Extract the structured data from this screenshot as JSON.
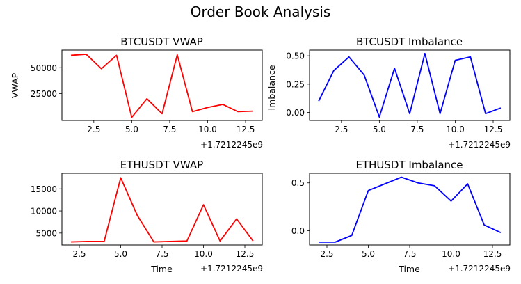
{
  "figure": {
    "suptitle": "Order Book Analysis"
  },
  "chart_data": [
    {
      "type": "line",
      "title": "BTCUSDT VWAP",
      "xlabel": "",
      "ylabel": "VWAP",
      "x_offset_label": "+1.7212245e9",
      "color": "#ff0000",
      "xlim": [
        0.4,
        13.6
      ],
      "ylim": [
        -1000,
        67000
      ],
      "xticks": [
        2.5,
        5.0,
        7.5,
        10.0,
        12.5
      ],
      "xtick_labels": [
        "2.5",
        "5.0",
        "7.5",
        "10.0",
        "12.5"
      ],
      "yticks": [
        25000,
        50000
      ],
      "ytick_labels": [
        "25000",
        "50000"
      ],
      "x": [
        1,
        2,
        3,
        4,
        5,
        6,
        7,
        8,
        9,
        10,
        11,
        12,
        13
      ],
      "y": [
        62000,
        63000,
        49000,
        62000,
        2000,
        20000,
        5500,
        62500,
        7500,
        11500,
        14500,
        7500,
        8000
      ]
    },
    {
      "type": "line",
      "title": "BTCUSDT Imbalance",
      "xlabel": "",
      "ylabel": "Imbalance",
      "x_offset_label": "+1.7212245e9",
      "color": "#0000ff",
      "xlim": [
        0.4,
        13.6
      ],
      "ylim": [
        -0.07,
        0.55
      ],
      "xticks": [
        2.5,
        5.0,
        7.5,
        10.0,
        12.5
      ],
      "xtick_labels": [
        "2.5",
        "5.0",
        "7.5",
        "10.0",
        "12.5"
      ],
      "yticks": [
        0.0,
        0.25,
        0.5
      ],
      "ytick_labels": [
        "0.00",
        "0.25",
        "0.50"
      ],
      "x": [
        1,
        2,
        3,
        4,
        5,
        6,
        7,
        8,
        9,
        10,
        11,
        12,
        13
      ],
      "y": [
        0.1,
        0.37,
        0.49,
        0.33,
        -0.04,
        0.39,
        -0.01,
        0.52,
        -0.01,
        0.46,
        0.49,
        -0.01,
        0.04
      ]
    },
    {
      "type": "line",
      "title": "ETHUSDT VWAP",
      "xlabel": "Time",
      "ylabel": "",
      "x_offset_label": "+1.7212245e9",
      "color": "#ff0000",
      "xlim": [
        1.45,
        13.55
      ],
      "ylim": [
        2300,
        18500
      ],
      "xticks": [
        2.5,
        5.0,
        7.5,
        10.0,
        12.5
      ],
      "xtick_labels": [
        "2.5",
        "5.0",
        "7.5",
        "10.0",
        "12.5"
      ],
      "yticks": [
        5000,
        10000,
        15000
      ],
      "ytick_labels": [
        "5000",
        "10000",
        "15000"
      ],
      "x": [
        2,
        3,
        4,
        5,
        6,
        7,
        8,
        9,
        10,
        11,
        12,
        13
      ],
      "y": [
        3000,
        3100,
        3100,
        17500,
        9000,
        3000,
        3100,
        3200,
        11400,
        3200,
        8200,
        3200
      ]
    },
    {
      "type": "line",
      "title": "ETHUSDT Imbalance",
      "xlabel": "Time",
      "ylabel": "",
      "x_offset_label": "+1.7212245e9",
      "color": "#0000ff",
      "xlim": [
        1.45,
        13.55
      ],
      "ylim": [
        -0.15,
        0.6
      ],
      "xticks": [
        2.5,
        5.0,
        7.5,
        10.0,
        12.5
      ],
      "xtick_labels": [
        "2.5",
        "5.0",
        "7.5",
        "10.0",
        "12.5"
      ],
      "yticks": [
        0.0,
        0.5
      ],
      "ytick_labels": [
        "0.0",
        "0.5"
      ],
      "x": [
        2,
        3,
        4,
        5,
        6,
        7,
        8,
        9,
        10,
        11,
        12,
        13
      ],
      "y": [
        -0.12,
        -0.12,
        -0.05,
        0.42,
        0.49,
        0.56,
        0.5,
        0.47,
        0.31,
        0.49,
        0.06,
        -0.02
      ]
    }
  ]
}
